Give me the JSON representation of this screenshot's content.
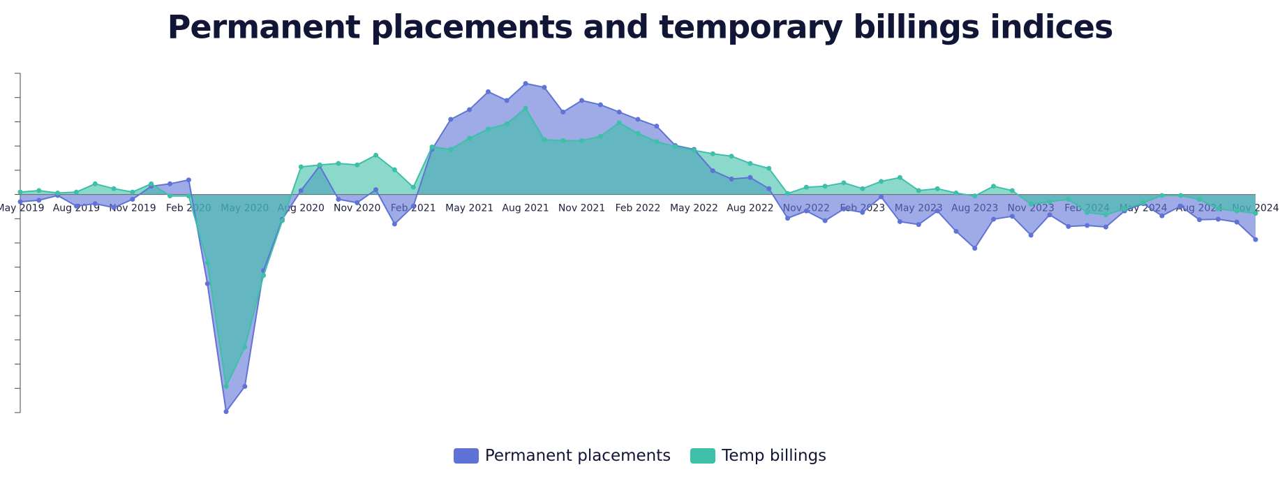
{
  "chart_data": {
    "type": "area",
    "title": "Permanent placements and temporary billings indices",
    "categories": [
      "May 2019",
      null,
      null,
      "Aug 2019",
      null,
      null,
      "Nov 2019",
      null,
      null,
      "Feb 2020",
      null,
      null,
      "May 2020",
      null,
      null,
      "Aug 2020",
      null,
      null,
      "Nov 2020",
      null,
      null,
      "Feb 2021",
      null,
      null,
      "May 2021",
      null,
      null,
      "Aug 2021",
      null,
      null,
      "Nov 2021",
      null,
      null,
      "Feb 2022",
      null,
      null,
      "May 2022",
      null,
      null,
      "Aug 2022",
      null,
      null,
      "Nov 2022",
      null,
      null,
      "Feb 2023",
      null,
      null,
      "May 2023",
      null,
      null,
      "Aug 2023",
      null,
      null,
      "Nov 2023",
      null,
      null,
      "Feb 2024",
      null,
      null,
      "May 2024",
      null,
      null,
      "Aug 2024",
      null,
      null,
      "Nov 2024"
    ],
    "series": [
      {
        "name": "Permanent placements",
        "color": "#5f73d6",
        "values": [
          -1.5,
          -1.2,
          -0.2,
          -2.4,
          -1.9,
          -2.7,
          -1.0,
          1.7,
          2.2,
          3.0,
          -18.4,
          -44.8,
          -39.6,
          -15.7,
          -5.1,
          0.8,
          5.9,
          -1.0,
          -1.7,
          1.0,
          -6.1,
          -2.4,
          9.3,
          15.5,
          17.5,
          21.2,
          19.4,
          22.9,
          22.1,
          17.0,
          19.4,
          18.5,
          17.0,
          15.5,
          14.1,
          10.1,
          9.3,
          4.9,
          3.2,
          3.5,
          1.2,
          -4.9,
          -3.4,
          -5.4,
          -3.0,
          -3.7,
          -0.5,
          -5.6,
          -6.2,
          -3.4,
          -7.6,
          -11.1,
          -5.1,
          -4.5,
          -8.4,
          -4.2,
          -6.6,
          -6.4,
          -6.7,
          -3.4,
          -1.9,
          -4.4,
          -2.4,
          -5.2,
          -5.1,
          -5.7,
          -9.3
        ]
      },
      {
        "name": "Temp billings",
        "color": "#3dbfa8",
        "values": [
          0.5,
          0.8,
          0.3,
          0.5,
          2.2,
          1.2,
          0.5,
          2.2,
          -0.3,
          -0.3,
          -14.1,
          -39.6,
          -31.5,
          -16.7,
          -5.4,
          5.7,
          6.1,
          6.4,
          6.1,
          8.1,
          5.1,
          1.5,
          9.8,
          9.3,
          11.6,
          13.5,
          14.6,
          17.8,
          11.3,
          11.1,
          11.1,
          12.0,
          14.8,
          12.6,
          10.9,
          9.9,
          9.1,
          8.4,
          7.9,
          6.4,
          5.4,
          0.2,
          1.5,
          1.7,
          2.4,
          1.2,
          2.7,
          3.5,
          0.8,
          1.2,
          0.3,
          -0.3,
          1.7,
          0.8,
          -2.0,
          -1.5,
          -1.0,
          -3.7,
          -4.2,
          -3.0,
          -1.7,
          -0.2,
          -0.2,
          -1.0,
          -3.0,
          -3.4,
          -3.9
        ]
      }
    ],
    "ylim": [
      -45,
      25
    ],
    "yticks": [
      -45,
      -40,
      -35,
      -30,
      -25,
      -20,
      -15,
      -10,
      -5,
      0,
      5,
      10,
      15,
      20,
      25
    ],
    "legend": "bottom"
  }
}
